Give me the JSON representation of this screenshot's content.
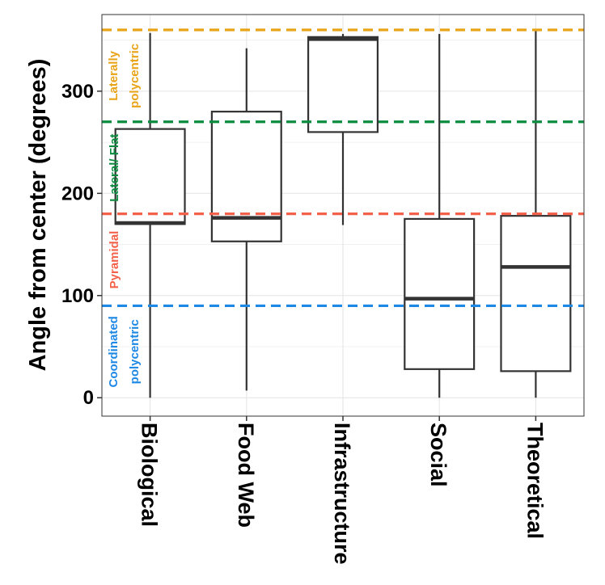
{
  "chart_data": {
    "type": "boxplot",
    "ylabel": "Angle from center (degrees)",
    "xlabel": "",
    "ylim": [
      -18,
      375
    ],
    "yticks": [
      0,
      100,
      200,
      300
    ],
    "grid": true,
    "categories": [
      "Biological",
      "Food Web",
      "Infrastructure",
      "Social",
      "Theoretical"
    ],
    "boxes": [
      {
        "category": "Biological",
        "min": 0,
        "q1": 170,
        "median": 171,
        "q3": 263,
        "max": 357
      },
      {
        "category": "Food Web",
        "min": 7,
        "q1": 153,
        "median": 176,
        "q3": 280,
        "max": 342
      },
      {
        "category": "Infrastructure",
        "min": 169,
        "q1": 260,
        "median": 351,
        "q3": 353,
        "max": 356
      },
      {
        "category": "Social",
        "min": 0,
        "q1": 28,
        "median": 97,
        "q3": 175,
        "max": 356
      },
      {
        "category": "Theoretical",
        "min": 0,
        "q1": 26,
        "median": 128,
        "q3": 178,
        "max": 360
      }
    ],
    "reference_lines": [
      {
        "y": 90,
        "color": "#1E88E5",
        "label_line1": "Coordinated",
        "label_line2": "polycentric"
      },
      {
        "y": 180,
        "color": "#F4614A",
        "label_line1": "Pyramidal",
        "label_line2": ""
      },
      {
        "y": 270,
        "color": "#0B8C3E",
        "label_line1": "Lateral/ Flat",
        "label_line2": ""
      },
      {
        "y": 360,
        "color": "#E8A317",
        "label_line1": "Laterally",
        "label_line2": "polycentric"
      }
    ]
  }
}
